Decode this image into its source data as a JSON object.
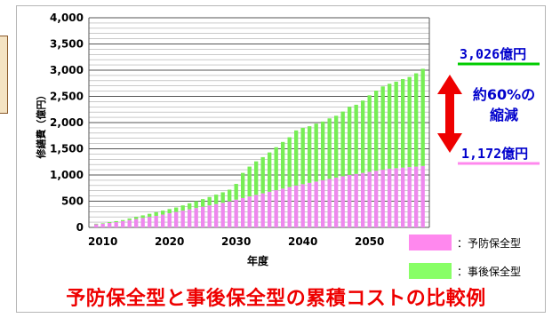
{
  "caption": "予防保全型と事後保全型の累積コストの比較例",
  "callouts": {
    "after_value": "3,026億円",
    "prevent_value": "1,172億円",
    "reduction_line1": "約60%の",
    "reduction_line2": "縮減"
  },
  "legend": [
    {
      "label": "：予防保全型",
      "color": "#ff88ee"
    },
    {
      "label": "：事後保全型",
      "color": "#88ff66"
    }
  ],
  "colors": {
    "prevent": "#ee88ee",
    "after": "#77ee55",
    "arrow": "#ee0000",
    "accent_line_after": "#00cc00",
    "accent_line_prevent": "#ff88ee"
  },
  "chart_data": {
    "type": "bar",
    "stacked": true,
    "xlabel": "年度",
    "ylabel": "修繕費（億円）",
    "ylim": [
      0,
      4000
    ],
    "yticks": [
      0,
      500,
      1000,
      1500,
      2000,
      2500,
      3000,
      3500,
      4000
    ],
    "ytick_labels": [
      "0",
      "500",
      "1,000",
      "1,500",
      "2,000",
      "2,500",
      "3,000",
      "3,500",
      "4,000"
    ],
    "xticks": [
      2010,
      2020,
      2030,
      2040,
      2050
    ],
    "grid": true,
    "categories": [
      2009,
      2010,
      2011,
      2012,
      2013,
      2014,
      2015,
      2016,
      2017,
      2018,
      2019,
      2020,
      2021,
      2022,
      2023,
      2024,
      2025,
      2026,
      2027,
      2028,
      2029,
      2030,
      2031,
      2032,
      2033,
      2034,
      2035,
      2036,
      2037,
      2038,
      2039,
      2040,
      2041,
      2042,
      2043,
      2044,
      2045,
      2046,
      2047,
      2048,
      2049,
      2050,
      2051,
      2052,
      2053,
      2054,
      2055,
      2056,
      2057,
      2058
    ],
    "series": [
      {
        "name": "予防保全型",
        "values": [
          60,
          70,
          85,
          100,
          120,
          140,
          160,
          180,
          200,
          220,
          245,
          270,
          295,
          320,
          345,
          370,
          395,
          420,
          445,
          470,
          495,
          530,
          560,
          590,
          620,
          650,
          680,
          710,
          740,
          770,
          800,
          825,
          850,
          875,
          900,
          925,
          950,
          975,
          1000,
          1020,
          1040,
          1060,
          1080,
          1100,
          1120,
          1130,
          1140,
          1150,
          1160,
          1172
        ]
      },
      {
        "name": "事後保全型",
        "values": [
          10,
          10,
          15,
          20,
          20,
          30,
          40,
          50,
          60,
          70,
          75,
          80,
          85,
          100,
          115,
          130,
          145,
          160,
          180,
          200,
          225,
          300,
          480,
          570,
          640,
          690,
          750,
          820,
          890,
          950,
          1050,
          1075,
          1080,
          1105,
          1120,
          1155,
          1180,
          1235,
          1300,
          1320,
          1380,
          1460,
          1530,
          1590,
          1620,
          1650,
          1690,
          1720,
          1780,
          1854
        ]
      }
    ]
  }
}
